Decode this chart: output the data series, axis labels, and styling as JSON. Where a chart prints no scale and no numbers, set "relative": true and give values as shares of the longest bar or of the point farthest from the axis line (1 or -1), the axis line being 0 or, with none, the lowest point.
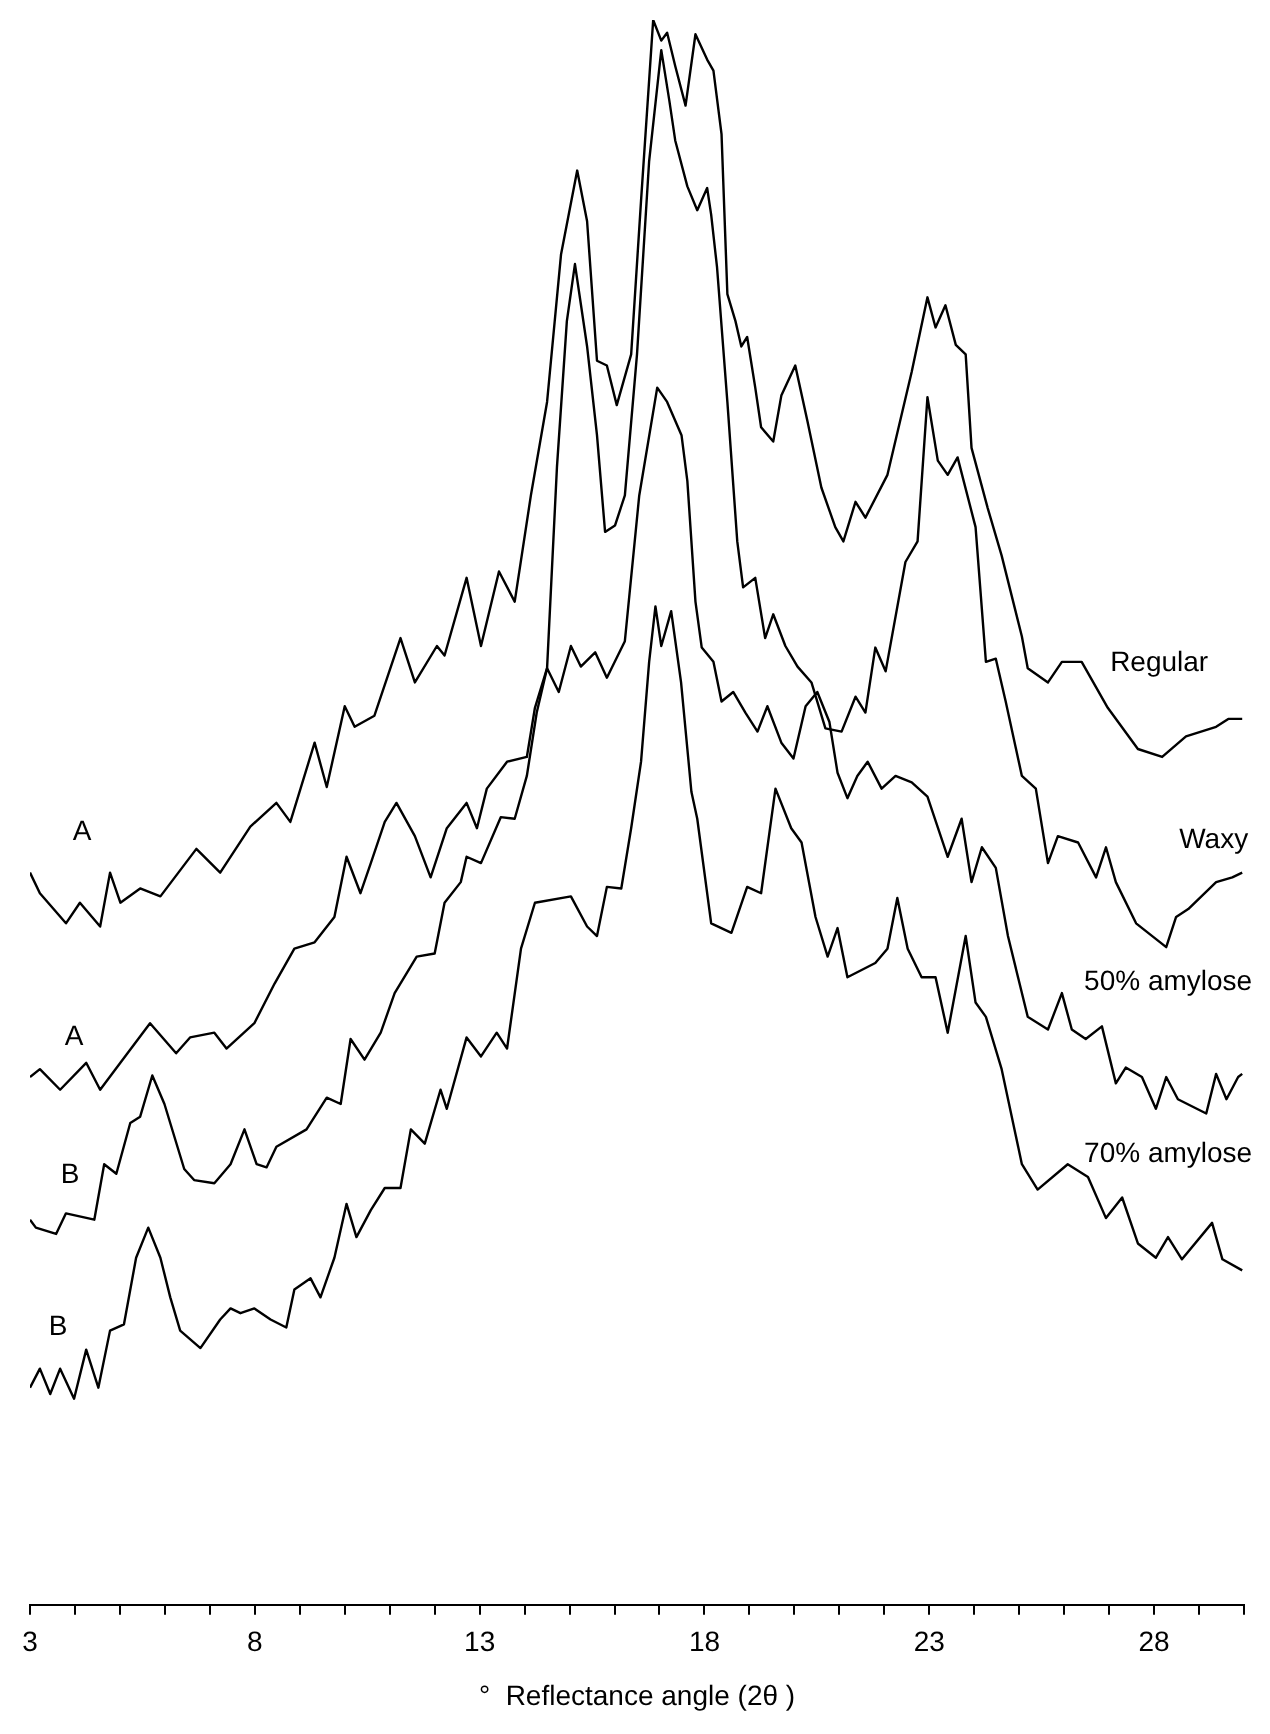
{
  "chart_data": {
    "type": "line",
    "relative": true,
    "marker": "none",
    "xlabel": "°  Reflectance angle (2θ )",
    "xlim": [
      3,
      30
    ],
    "xticks": [
      3,
      {
        "value": 4,
        "label": null
      },
      {
        "value": 5,
        "label": null
      },
      {
        "value": 6,
        "label": null
      },
      {
        "value": 7,
        "label": null
      },
      8,
      {
        "value": 9,
        "label": null
      },
      {
        "value": 10,
        "label": null
      },
      {
        "value": 11,
        "label": null
      },
      {
        "value": 12,
        "label": null
      },
      13,
      {
        "value": 14,
        "label": null
      },
      {
        "value": 15,
        "label": null
      },
      {
        "value": 16,
        "label": null
      },
      {
        "value": 17,
        "label": null
      },
      18,
      {
        "value": 19,
        "label": null
      },
      {
        "value": 20,
        "label": null
      },
      {
        "value": 21,
        "label": null
      },
      {
        "value": 22,
        "label": null
      },
      23,
      {
        "value": 24,
        "label": null
      },
      {
        "value": 25,
        "label": null
      },
      {
        "value": 26,
        "label": null
      },
      {
        "value": 27,
        "label": null
      },
      28,
      {
        "value": 29,
        "label": null
      },
      {
        "value": 30,
        "label": null
      }
    ],
    "annotations": [
      "A",
      "A",
      "B",
      "B"
    ],
    "series": [
      {
        "name": "Regular",
        "color": "#000000",
        "x": [
          3.0,
          3.22,
          3.8,
          4.11,
          4.56,
          4.78,
          5.01,
          5.45,
          5.9,
          6.7,
          7.23,
          7.9,
          8.48,
          8.79,
          9.33,
          9.6,
          10.0,
          10.22,
          10.66,
          11.24,
          11.56,
          12.05,
          12.22,
          12.71,
          13.03,
          13.43,
          13.78,
          14.14,
          14.5,
          14.81,
          15.17,
          15.39,
          15.61,
          15.83,
          16.05,
          16.37,
          16.59,
          16.86,
          17.04,
          17.17,
          17.35,
          17.58,
          17.8,
          18.06,
          18.2,
          18.38,
          18.51,
          18.69,
          18.82,
          18.95,
          19.13,
          19.26,
          19.53,
          19.71,
          20.02,
          20.29,
          20.6,
          20.91,
          21.09,
          21.36,
          21.58,
          22.07,
          22.61,
          22.96,
          23.14,
          23.36,
          23.59,
          23.81,
          23.94,
          24.3,
          24.61,
          25.06,
          25.19,
          25.64,
          25.95,
          26.39,
          26.97,
          27.64,
          28.18,
          28.71,
          29.38,
          29.65,
          29.96
        ],
        "values": [
          0.462,
          0.449,
          0.43,
          0.443,
          0.428,
          0.462,
          0.443,
          0.452,
          0.447,
          0.477,
          0.462,
          0.491,
          0.506,
          0.494,
          0.544,
          0.516,
          0.567,
          0.554,
          0.561,
          0.61,
          0.582,
          0.605,
          0.599,
          0.648,
          0.605,
          0.652,
          0.633,
          0.7,
          0.759,
          0.852,
          0.905,
          0.873,
          0.785,
          0.782,
          0.757,
          0.789,
          0.886,
          1,
          0.987,
          0.992,
          0.971,
          0.946,
          0.991,
          0.975,
          0.968,
          0.928,
          0.827,
          0.81,
          0.794,
          0.8,
          0.768,
          0.743,
          0.734,
          0.763,
          0.782,
          0.747,
          0.705,
          0.68,
          0.671,
          0.696,
          0.686,
          0.713,
          0.778,
          0.825,
          0.806,
          0.82,
          0.795,
          0.789,
          0.73,
          0.692,
          0.662,
          0.611,
          0.591,
          0.582,
          0.595,
          0.595,
          0.566,
          0.54,
          0.535,
          0.548,
          0.554,
          0.559,
          0.559
        ]
      },
      {
        "name": "Waxy",
        "color": "#000000",
        "x": [
          3.0,
          3.22,
          3.67,
          4.25,
          4.56,
          5.01,
          5.67,
          6.25,
          6.56,
          7.1,
          7.37,
          7.99,
          8.44,
          8.88,
          9.33,
          9.77,
          10.04,
          10.35,
          10.58,
          10.89,
          11.15,
          11.56,
          11.91,
          12.27,
          12.71,
          12.94,
          13.16,
          13.61,
          14.05,
          14.23,
          14.5,
          14.72,
          14.94,
          15.12,
          15.39,
          15.61,
          15.79,
          16.01,
          16.23,
          16.5,
          16.77,
          17.04,
          17.22,
          17.35,
          17.62,
          17.84,
          18.06,
          18.15,
          18.28,
          18.51,
          18.73,
          18.86,
          19.13,
          19.35,
          19.53,
          19.8,
          20.07,
          20.38,
          20.69,
          21.05,
          21.36,
          21.58,
          21.8,
          22.03,
          22.47,
          22.74,
          22.96,
          23.19,
          23.41,
          23.63,
          24.03,
          24.26,
          24.48,
          24.7,
          25.06,
          25.37,
          25.64,
          25.86,
          26.31,
          26.71,
          26.93,
          27.15,
          27.6,
          28.27,
          28.49,
          28.76,
          29.38,
          29.74,
          29.96
        ],
        "values": [
          0.333,
          0.338,
          0.325,
          0.342,
          0.325,
          0.342,
          0.367,
          0.348,
          0.358,
          0.361,
          0.351,
          0.367,
          0.392,
          0.414,
          0.418,
          0.434,
          0.472,
          0.449,
          0.468,
          0.494,
          0.506,
          0.485,
          0.459,
          0.49,
          0.506,
          0.49,
          0.515,
          0.532,
          0.535,
          0.566,
          0.591,
          0.718,
          0.81,
          0.846,
          0.794,
          0.738,
          0.677,
          0.681,
          0.7,
          0.789,
          0.911,
          0.981,
          0.949,
          0.924,
          0.895,
          0.88,
          0.894,
          0.877,
          0.844,
          0.759,
          0.671,
          0.642,
          0.648,
          0.61,
          0.625,
          0.605,
          0.592,
          0.582,
          0.553,
          0.551,
          0.573,
          0.563,
          0.604,
          0.589,
          0.658,
          0.671,
          0.762,
          0.722,
          0.713,
          0.724,
          0.68,
          0.595,
          0.597,
          0.57,
          0.523,
          0.515,
          0.468,
          0.485,
          0.481,
          0.459,
          0.478,
          0.456,
          0.43,
          0.415,
          0.434,
          0.439,
          0.456,
          0.459,
          0.462
        ]
      },
      {
        "name": "50% amylose",
        "color": "#000000",
        "x": [
          3.0,
          3.13,
          3.58,
          3.8,
          4.43,
          4.65,
          4.92,
          5.23,
          5.45,
          5.72,
          5.99,
          6.43,
          6.65,
          7.1,
          7.46,
          7.77,
          8.04,
          8.26,
          8.48,
          9.15,
          9.6,
          9.91,
          10.13,
          10.44,
          10.8,
          11.11,
          11.6,
          12.0,
          12.22,
          12.58,
          12.71,
          13.03,
          13.47,
          13.78,
          14.05,
          14.27,
          14.5,
          14.76,
          15.03,
          15.25,
          15.57,
          15.83,
          16.23,
          16.55,
          16.95,
          17.17,
          17.49,
          17.62,
          17.8,
          17.94,
          18.2,
          18.38,
          18.64,
          18.91,
          19.18,
          19.4,
          19.71,
          19.98,
          20.25,
          20.51,
          20.78,
          20.96,
          21.18,
          21.4,
          21.63,
          21.94,
          22.25,
          22.61,
          22.96,
          23.41,
          23.72,
          23.94,
          24.17,
          24.48,
          24.75,
          25.19,
          25.64,
          25.95,
          26.17,
          26.48,
          26.84,
          27.15,
          27.37,
          27.73,
          28.04,
          28.27,
          28.53,
          29.16,
          29.38,
          29.61,
          29.87,
          29.96
        ],
        "values": [
          0.243,
          0.238,
          0.234,
          0.247,
          0.243,
          0.278,
          0.272,
          0.304,
          0.308,
          0.334,
          0.316,
          0.275,
          0.268,
          0.266,
          0.278,
          0.3,
          0.278,
          0.276,
          0.289,
          0.3,
          0.32,
          0.316,
          0.357,
          0.344,
          0.361,
          0.386,
          0.409,
          0.411,
          0.443,
          0.456,
          0.472,
          0.468,
          0.497,
          0.496,
          0.523,
          0.563,
          0.591,
          0.576,
          0.605,
          0.592,
          0.601,
          0.585,
          0.608,
          0.7,
          0.768,
          0.759,
          0.738,
          0.709,
          0.633,
          0.604,
          0.595,
          0.57,
          0.576,
          0.563,
          0.551,
          0.567,
          0.544,
          0.534,
          0.567,
          0.576,
          0.557,
          0.525,
          0.509,
          0.523,
          0.532,
          0.515,
          0.523,
          0.519,
          0.51,
          0.472,
          0.496,
          0.456,
          0.478,
          0.465,
          0.422,
          0.371,
          0.363,
          0.386,
          0.363,
          0.357,
          0.365,
          0.329,
          0.339,
          0.333,
          0.313,
          0.333,
          0.319,
          0.31,
          0.335,
          0.319,
          0.333,
          0.335
        ]
      },
      {
        "name": "70% amylose",
        "color": "#000000",
        "x": [
          3.0,
          3.22,
          3.45,
          3.67,
          3.98,
          4.25,
          4.52,
          4.78,
          5.09,
          5.36,
          5.63,
          5.9,
          6.12,
          6.34,
          6.79,
          7.23,
          7.46,
          7.68,
          7.99,
          8.35,
          8.7,
          8.88,
          9.24,
          9.46,
          9.77,
          10.04,
          10.26,
          10.58,
          10.89,
          11.24,
          11.47,
          11.78,
          12.13,
          12.27,
          12.71,
          13.03,
          13.38,
          13.61,
          13.92,
          14.23,
          15.03,
          15.39,
          15.61,
          15.83,
          16.15,
          16.37,
          16.59,
          16.77,
          16.91,
          17.04,
          17.26,
          17.48,
          17.71,
          17.84,
          18.15,
          18.6,
          18.95,
          19.26,
          19.58,
          19.93,
          20.16,
          20.47,
          20.74,
          20.96,
          21.18,
          21.8,
          22.07,
          22.29,
          22.52,
          22.83,
          23.14,
          23.41,
          23.81,
          24.03,
          24.26,
          24.61,
          25.06,
          25.41,
          26.08,
          26.53,
          26.93,
          27.29,
          27.64,
          28.04,
          28.31,
          28.62,
          29.29,
          29.52,
          29.96
        ],
        "values": [
          0.137,
          0.149,
          0.133,
          0.149,
          0.13,
          0.161,
          0.137,
          0.173,
          0.177,
          0.219,
          0.238,
          0.219,
          0.194,
          0.173,
          0.162,
          0.18,
          0.187,
          0.184,
          0.187,
          0.18,
          0.175,
          0.199,
          0.206,
          0.194,
          0.219,
          0.253,
          0.232,
          0.249,
          0.263,
          0.263,
          0.3,
          0.291,
          0.325,
          0.313,
          0.358,
          0.346,
          0.361,
          0.351,
          0.414,
          0.443,
          0.447,
          0.428,
          0.422,
          0.453,
          0.452,
          0.49,
          0.532,
          0.595,
          0.63,
          0.605,
          0.627,
          0.582,
          0.513,
          0.496,
          0.43,
          0.424,
          0.453,
          0.449,
          0.515,
          0.49,
          0.481,
          0.434,
          0.409,
          0.427,
          0.396,
          0.405,
          0.414,
          0.446,
          0.414,
          0.396,
          0.396,
          0.361,
          0.422,
          0.38,
          0.371,
          0.338,
          0.278,
          0.262,
          0.278,
          0.27,
          0.244,
          0.257,
          0.228,
          0.219,
          0.232,
          0.218,
          0.241,
          0.218,
          0.211
        ]
      }
    ]
  }
}
